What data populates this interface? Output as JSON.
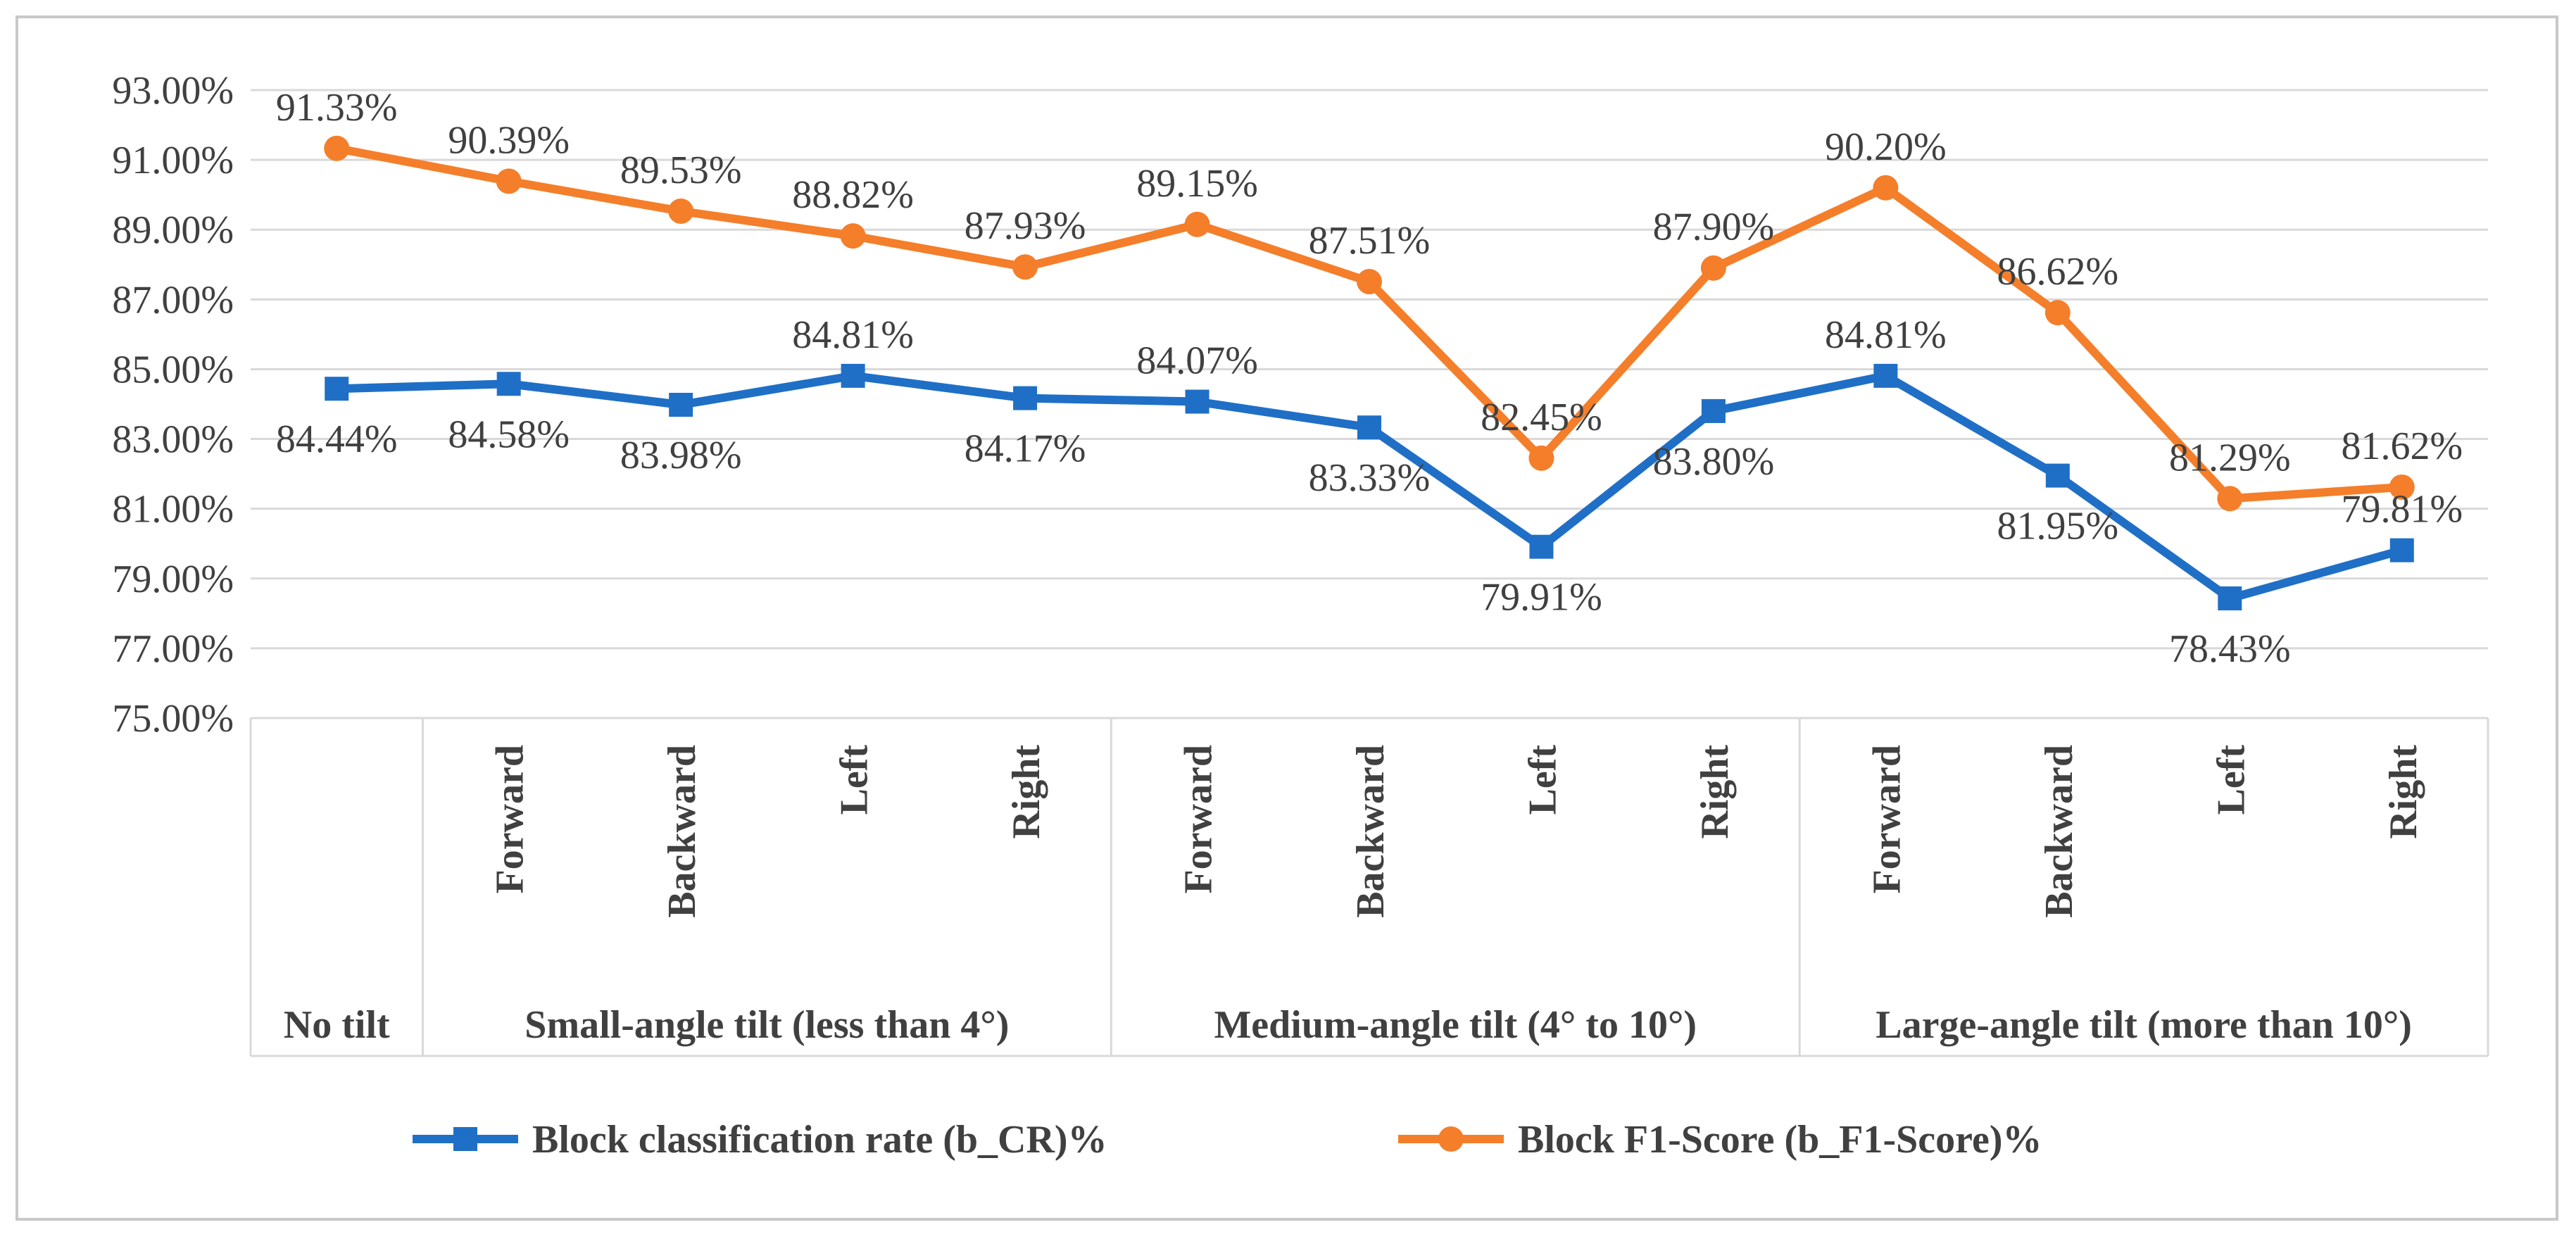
{
  "chart_data": {
    "type": "line",
    "title": "",
    "xlabel": "",
    "ylabel": "",
    "ylim": [
      75,
      93
    ],
    "yticks": [
      "75.00%",
      "77.00%",
      "79.00%",
      "81.00%",
      "83.00%",
      "85.00%",
      "87.00%",
      "89.00%",
      "91.00%",
      "93.00%"
    ],
    "grid": true,
    "legend_position": "bottom",
    "categories": [
      "",
      "Forward",
      "Backward",
      "Left",
      "Right",
      "Forward",
      "Backward",
      "Left",
      "Right",
      "Forward",
      "Backward",
      "Left",
      "Right"
    ],
    "groups": [
      {
        "label": "No tilt",
        "span": 1
      },
      {
        "label": "Small-angle tilt (less than 4°)",
        "span": 4
      },
      {
        "label": "Medium-angle tilt (4° to 10°)",
        "span": 4
      },
      {
        "label": "Large-angle tilt (more than 10°)",
        "span": 4
      }
    ],
    "series": [
      {
        "name": "Block classification rate (b_CR)%",
        "color": "#1f6fc6",
        "marker": "square",
        "values": [
          84.44,
          84.58,
          83.98,
          84.81,
          84.17,
          84.07,
          83.33,
          79.91,
          83.8,
          84.81,
          81.95,
          78.43,
          79.81
        ],
        "labels": [
          "84.44%",
          "84.58%",
          "83.98%",
          "84.81%",
          "84.17%",
          "84.07%",
          "83.33%",
          "79.91%",
          "83.80%",
          "84.81%",
          "81.95%",
          "78.43%",
          "79.81%"
        ]
      },
      {
        "name": "Block F1-Score (b_F1-Score)%",
        "color": "#f47e2a",
        "marker": "circle",
        "values": [
          91.33,
          90.39,
          89.53,
          88.82,
          87.93,
          89.15,
          87.51,
          82.45,
          87.9,
          90.2,
          86.62,
          81.29,
          81.62
        ],
        "labels": [
          "91.33%",
          "90.39%",
          "89.53%",
          "88.82%",
          "87.93%",
          "89.15%",
          "87.51%",
          "82.45%",
          "87.90%",
          "90.20%",
          "86.62%",
          "81.29%",
          "81.62%"
        ]
      }
    ]
  }
}
